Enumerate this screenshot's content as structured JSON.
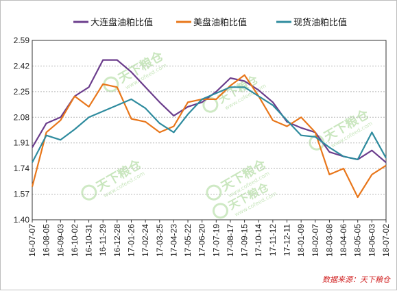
{
  "chart_data": {
    "type": "line",
    "title": "",
    "xlabel": "",
    "ylabel": "",
    "ylim": [
      1.4,
      2.59
    ],
    "yticks": [
      "2.59",
      "2.42",
      "2.25",
      "2.08",
      "1.91",
      "1.74",
      "1.57",
      "1.40"
    ],
    "categories": [
      "16-07-07",
      "16-08-05",
      "16-09-03",
      "16-10-02",
      "16-10-31",
      "16-11-29",
      "16-12-28",
      "17-01-26",
      "17-02-24",
      "17-03-25",
      "17-04-23",
      "17-05-22",
      "17-06-20",
      "17-07-19",
      "17-08-17",
      "17-09-15",
      "17-10-14",
      "17-11-12",
      "17-12-11",
      "18-01-09",
      "18-02-07",
      "18-03-08",
      "18-04-06",
      "18-05-05",
      "18-06-03",
      "18-07-02"
    ],
    "grid": true,
    "legend_position": "top",
    "series": [
      {
        "name": "大连盘油粕比值",
        "color": "#6b3d8c",
        "values": [
          1.88,
          2.04,
          2.08,
          2.22,
          2.28,
          2.46,
          2.46,
          2.38,
          2.28,
          2.18,
          2.09,
          2.15,
          2.18,
          2.25,
          2.34,
          2.32,
          2.26,
          2.18,
          2.05,
          2.01,
          1.98,
          1.85,
          1.82,
          1.8,
          1.86,
          1.78
        ]
      },
      {
        "name": "美盘油粕比值",
        "color": "#e8761a",
        "values": [
          1.62,
          1.98,
          2.06,
          2.22,
          2.15,
          2.3,
          2.28,
          2.07,
          2.05,
          1.98,
          2.02,
          2.18,
          2.2,
          2.2,
          2.29,
          2.36,
          2.22,
          2.06,
          2.02,
          2.08,
          1.98,
          1.7,
          1.74,
          1.55,
          1.7,
          1.76
        ]
      },
      {
        "name": "现货油粕比值",
        "color": "#2e8b9e",
        "values": [
          1.78,
          1.96,
          1.93,
          2.0,
          2.08,
          2.12,
          2.16,
          2.2,
          2.14,
          2.04,
          1.98,
          2.1,
          2.2,
          2.24,
          2.28,
          2.28,
          2.22,
          2.16,
          2.06,
          1.96,
          1.95,
          1.88,
          1.82,
          1.8,
          1.98,
          1.81
        ]
      }
    ]
  },
  "source": "数据来源：天下粮仓",
  "watermark": {
    "text": "天下粮仓",
    "url": "www.cofeed.com",
    "color": "#9ed38a"
  }
}
